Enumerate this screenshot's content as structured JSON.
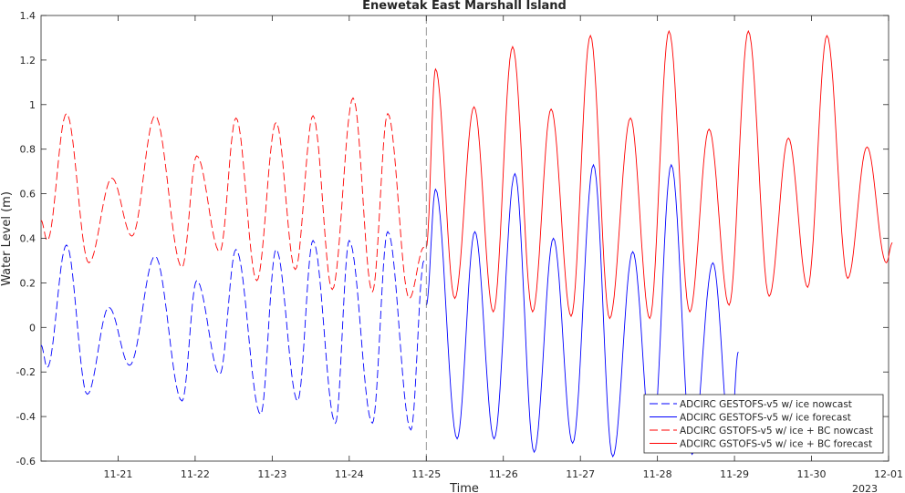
{
  "chart_data": {
    "type": "line",
    "title": "Enewetak East Marshall Island",
    "xlabel": "Time",
    "ylabel": "Water Level (m)",
    "year_label": "2023",
    "xlim": [
      "11-20",
      "12-01"
    ],
    "ylim": [
      -0.6,
      1.4
    ],
    "x_ticks": [
      {
        "day": 21,
        "label": "11-21"
      },
      {
        "day": 22,
        "label": "11-22"
      },
      {
        "day": 23,
        "label": "11-23"
      },
      {
        "day": 24,
        "label": "11-24"
      },
      {
        "day": 25,
        "label": "11-25"
      },
      {
        "day": 26,
        "label": "11-26"
      },
      {
        "day": 27,
        "label": "11-27"
      },
      {
        "day": 28,
        "label": "11-28"
      },
      {
        "day": 29,
        "label": "11-29"
      },
      {
        "day": 30,
        "label": "11-30"
      },
      {
        "day": 31,
        "label": "12-01"
      }
    ],
    "y_ticks": [
      -0.6,
      -0.4,
      -0.2,
      0,
      0.2,
      0.4,
      0.6,
      0.8,
      1,
      1.2,
      1.4
    ],
    "grid": false,
    "legend_position": "bottom-right",
    "nowcast_end_day": 25,
    "series": [
      {
        "name": "ADCIRC GESTOFS-v5 w/ ice nowcast",
        "color": "#0000ff",
        "dashed": true,
        "x": [
          20.0,
          20.08,
          20.33,
          20.6,
          20.88,
          21.15,
          21.48,
          21.83,
          22.02,
          22.32,
          22.53,
          22.85,
          23.05,
          23.33,
          23.53,
          23.82,
          24.0,
          24.3,
          24.5,
          24.8,
          24.97
        ],
        "y": [
          -0.08,
          -0.18,
          0.37,
          -0.3,
          0.09,
          -0.17,
          0.32,
          -0.33,
          0.21,
          -0.21,
          0.35,
          -0.39,
          0.35,
          -0.33,
          0.39,
          -0.43,
          0.39,
          -0.43,
          0.43,
          -0.46,
          0.3
        ]
      },
      {
        "name": "ADCIRC GESTOFS-v5 w/ ice forecast",
        "color": "#0000ff",
        "dashed": false,
        "x": [
          25.0,
          25.12,
          25.4,
          25.63,
          25.88,
          26.15,
          26.4,
          26.65,
          26.9,
          27.17,
          27.42,
          27.68,
          27.93,
          28.18,
          28.45,
          28.72,
          28.95,
          29.05
        ],
        "y": [
          0.1,
          0.62,
          -0.5,
          0.43,
          -0.5,
          0.69,
          -0.56,
          0.4,
          -0.52,
          0.73,
          -0.58,
          0.34,
          -0.54,
          0.73,
          -0.57,
          0.29,
          -0.52,
          -0.11
        ]
      },
      {
        "name": "ADCIRC GSTOFS-v5 w/ ice + BC nowcast",
        "color": "#ff0000",
        "dashed": true,
        "x": [
          20.0,
          20.08,
          20.33,
          20.62,
          20.92,
          21.18,
          21.48,
          21.83,
          22.02,
          22.32,
          22.53,
          22.8,
          23.05,
          23.3,
          23.53,
          23.78,
          24.05,
          24.3,
          24.5,
          24.78,
          24.97
        ],
        "y": [
          0.48,
          0.39,
          0.96,
          0.29,
          0.67,
          0.41,
          0.95,
          0.27,
          0.77,
          0.34,
          0.94,
          0.21,
          0.92,
          0.26,
          0.95,
          0.17,
          1.03,
          0.16,
          0.96,
          0.13,
          0.36
        ]
      },
      {
        "name": "ADCIRC GSTOFS-v5 w/ ice + BC forecast",
        "color": "#ff0000",
        "dashed": false,
        "x": [
          25.0,
          25.12,
          25.37,
          25.62,
          25.87,
          26.12,
          26.38,
          26.62,
          26.88,
          27.13,
          27.38,
          27.65,
          27.9,
          28.15,
          28.42,
          28.67,
          28.93,
          29.18,
          29.45,
          29.7,
          29.95,
          30.2,
          30.47,
          30.72,
          30.97,
          31.05
        ],
        "y": [
          0.36,
          1.16,
          0.13,
          0.99,
          0.07,
          1.26,
          0.07,
          0.98,
          0.05,
          1.31,
          0.04,
          0.94,
          0.04,
          1.33,
          0.07,
          0.89,
          0.1,
          1.33,
          0.14,
          0.85,
          0.18,
          1.31,
          0.22,
          0.81,
          0.29,
          0.38
        ]
      }
    ]
  }
}
